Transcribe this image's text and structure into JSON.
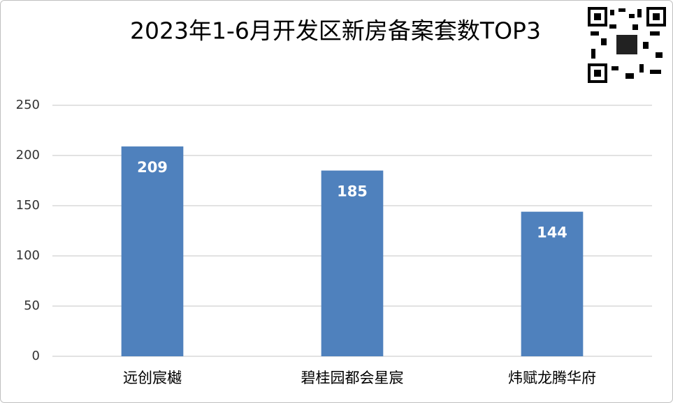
{
  "chart_data": {
    "type": "bar",
    "title": "2023年1-6月开发区新房备案套数TOP3",
    "categories": [
      "远创宸樾",
      "碧桂园都会星宸",
      "炜赋龙腾华府"
    ],
    "values": [
      209,
      185,
      144
    ],
    "color": "#4f81bd",
    "ylim": [
      0,
      250
    ],
    "yticks": [
      0,
      50,
      100,
      150,
      200,
      250
    ],
    "grid": true
  }
}
